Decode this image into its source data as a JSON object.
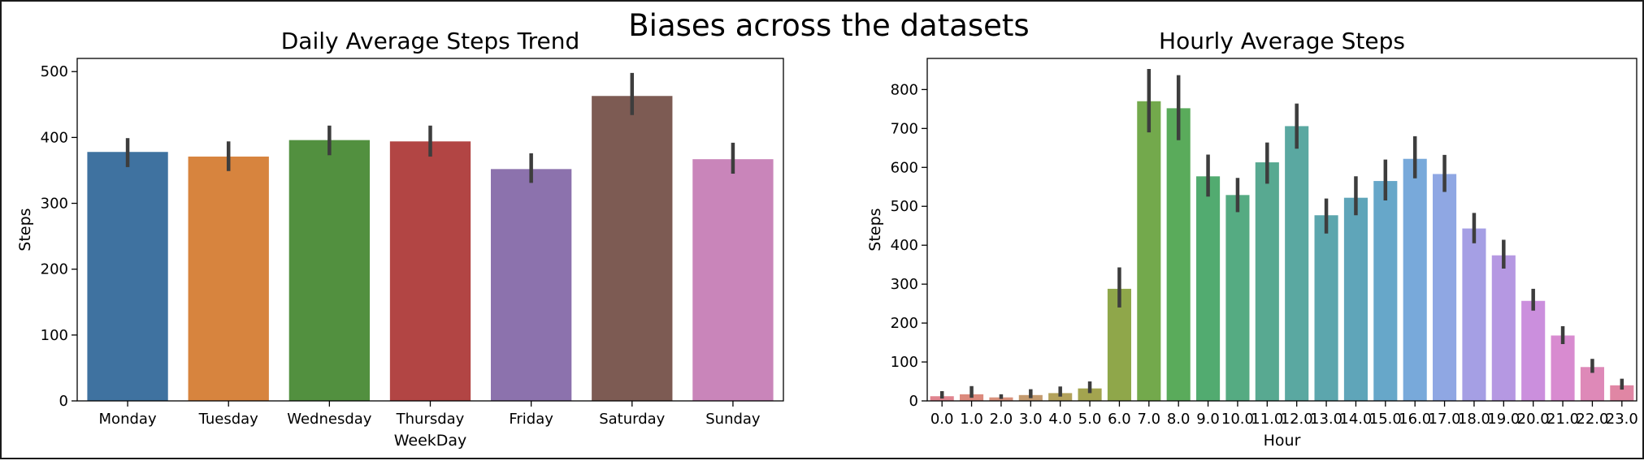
{
  "figure": {
    "suptitle": "Biases across the datasets"
  },
  "chart_data": [
    {
      "type": "bar",
      "title": "Daily Average Steps Trend",
      "xlabel": "WeekDay",
      "ylabel": "Steps",
      "ylim": [
        0,
        520
      ],
      "yticks": [
        0,
        100,
        200,
        300,
        400,
        500
      ],
      "categories": [
        "Monday",
        "Tuesday",
        "Wednesday",
        "Thursday",
        "Friday",
        "Saturday",
        "Sunday"
      ],
      "values": [
        378,
        371,
        396,
        394,
        352,
        463,
        367
      ],
      "error_low": [
        355,
        349,
        373,
        371,
        331,
        434,
        345
      ],
      "error_high": [
        399,
        394,
        418,
        418,
        376,
        498,
        392
      ],
      "colors": [
        "#3f72a0",
        "#d7843e",
        "#52903f",
        "#b24544",
        "#8c72ad",
        "#7d5b53",
        "#c985ba"
      ]
    },
    {
      "type": "bar",
      "title": "Hourly Average Steps",
      "xlabel": "Hour",
      "ylabel": "Steps",
      "ylim": [
        0,
        880
      ],
      "yticks": [
        0,
        100,
        200,
        300,
        400,
        500,
        600,
        700,
        800
      ],
      "categories": [
        "0.0",
        "1.0",
        "2.0",
        "3.0",
        "4.0",
        "5.0",
        "6.0",
        "7.0",
        "8.0",
        "9.0",
        "10.0",
        "11.0",
        "12.0",
        "13.0",
        "14.0",
        "15.0",
        "16.0",
        "17.0",
        "18.0",
        "19.0",
        "20.0",
        "21.0",
        "22.0",
        "23.0"
      ],
      "values": [
        12,
        17,
        9,
        15,
        20,
        32,
        288,
        770,
        752,
        577,
        529,
        613,
        706,
        477,
        522,
        565,
        622,
        583,
        443,
        374,
        257,
        168,
        87,
        40
      ],
      "error_low": [
        6,
        8,
        5,
        7,
        11,
        20,
        240,
        690,
        670,
        525,
        485,
        558,
        648,
        430,
        477,
        515,
        572,
        537,
        405,
        340,
        232,
        146,
        72,
        29
      ],
      "error_high": [
        25,
        38,
        17,
        30,
        37,
        50,
        343,
        853,
        837,
        633,
        573,
        664,
        764,
        520,
        577,
        620,
        680,
        632,
        483,
        414,
        288,
        192,
        108,
        57
      ],
      "colors": [
        "#e0848f",
        "#dc8a7d",
        "#d8917c",
        "#c49b6f",
        "#b3a25c",
        "#a3a44f",
        "#8fa74a",
        "#73a94c",
        "#5aab5b",
        "#52ab70",
        "#55ab82",
        "#58a991",
        "#5aa8a1",
        "#5ca6ad",
        "#5fa5b9",
        "#67a7c9",
        "#78a9da",
        "#8fa7e3",
        "#a59fe4",
        "#b598e2",
        "#cb8fdd",
        "#d88bd0",
        "#de89b8",
        "#e086a4"
      ]
    }
  ]
}
